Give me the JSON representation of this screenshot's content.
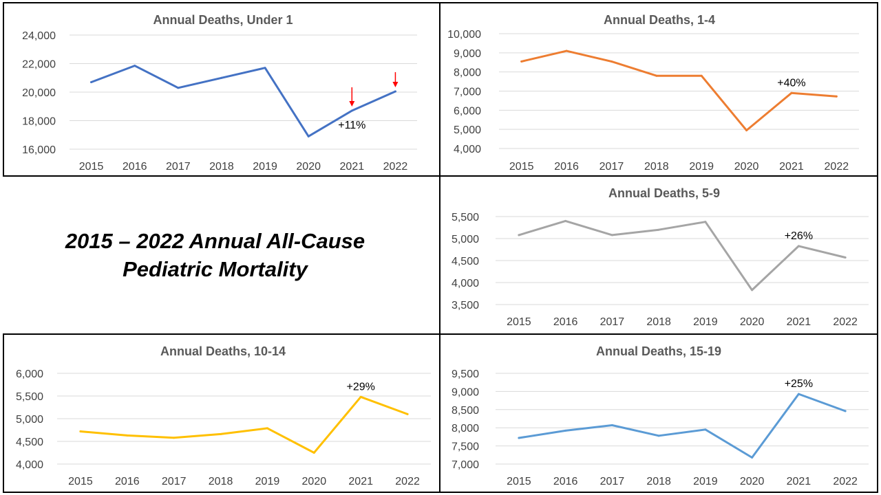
{
  "title": {
    "line1": "2015 – 2022 Annual All-Cause",
    "line2": "Pediatric Mortality"
  },
  "chart_data": [
    {
      "type": "line",
      "title": "Annual Deaths, Under 1",
      "categories": [
        "2015",
        "2016",
        "2017",
        "2018",
        "2019",
        "2020",
        "2021",
        "2022"
      ],
      "series": [
        {
          "values": [
            20700,
            21850,
            20300,
            21000,
            21700,
            16900,
            18700,
            20050
          ]
        }
      ],
      "ylim": [
        16000,
        24000
      ],
      "yticks": [
        16000,
        18000,
        20000,
        22000,
        24000
      ],
      "color": "#4472C4",
      "annotations": [
        {
          "text": "+11%",
          "category": "2021"
        }
      ],
      "markers": [
        {
          "shape": "red-down-arrow",
          "category": "2021"
        },
        {
          "shape": "red-down-arrow",
          "category": "2022"
        }
      ],
      "grid": true
    },
    {
      "type": "line",
      "title": "Annual Deaths, 1-4",
      "categories": [
        "2015",
        "2016",
        "2017",
        "2018",
        "2019",
        "2020",
        "2021",
        "2022"
      ],
      "series": [
        {
          "values": [
            8550,
            9100,
            8550,
            7800,
            7800,
            4950,
            6900,
            6720
          ]
        }
      ],
      "ylim": [
        4000,
        10000
      ],
      "yticks": [
        4000,
        5000,
        6000,
        7000,
        8000,
        9000,
        10000
      ],
      "color": "#ED7D31",
      "annotations": [
        {
          "text": "+40%",
          "category": "2021"
        }
      ],
      "grid": true
    },
    {
      "type": "line",
      "title": "Annual Deaths, 5-9",
      "categories": [
        "2015",
        "2016",
        "2017",
        "2018",
        "2019",
        "2020",
        "2021",
        "2022"
      ],
      "series": [
        {
          "values": [
            5080,
            5400,
            5080,
            5200,
            5380,
            3830,
            4830,
            4570
          ]
        }
      ],
      "ylim": [
        3500,
        5500
      ],
      "yticks": [
        3500,
        4000,
        4500,
        5000,
        5500
      ],
      "color": "#A5A5A5",
      "annotations": [
        {
          "text": "+26%",
          "category": "2021"
        }
      ],
      "grid": true
    },
    {
      "type": "line",
      "title": "Annual Deaths, 10-14",
      "categories": [
        "2015",
        "2016",
        "2017",
        "2018",
        "2019",
        "2020",
        "2021",
        "2022"
      ],
      "series": [
        {
          "values": [
            4720,
            4630,
            4580,
            4660,
            4790,
            4250,
            5480,
            5100
          ]
        }
      ],
      "ylim": [
        4000,
        6000
      ],
      "yticks": [
        4000,
        4500,
        5000,
        5500,
        6000
      ],
      "color": "#FFC000",
      "annotations": [
        {
          "text": "+29%",
          "category": "2021"
        }
      ],
      "grid": true
    },
    {
      "type": "line",
      "title": "Annual Deaths, 15-19",
      "categories": [
        "2015",
        "2016",
        "2017",
        "2018",
        "2019",
        "2020",
        "2021",
        "2022"
      ],
      "series": [
        {
          "values": [
            7720,
            7920,
            8070,
            7780,
            7950,
            7180,
            8930,
            8460
          ]
        }
      ],
      "ylim": [
        7000,
        9500
      ],
      "yticks": [
        7000,
        7500,
        8000,
        8500,
        9000,
        9500
      ],
      "color": "#5B9BD5",
      "annotations": [
        {
          "text": "+25%",
          "category": "2021"
        }
      ],
      "grid": true
    }
  ]
}
